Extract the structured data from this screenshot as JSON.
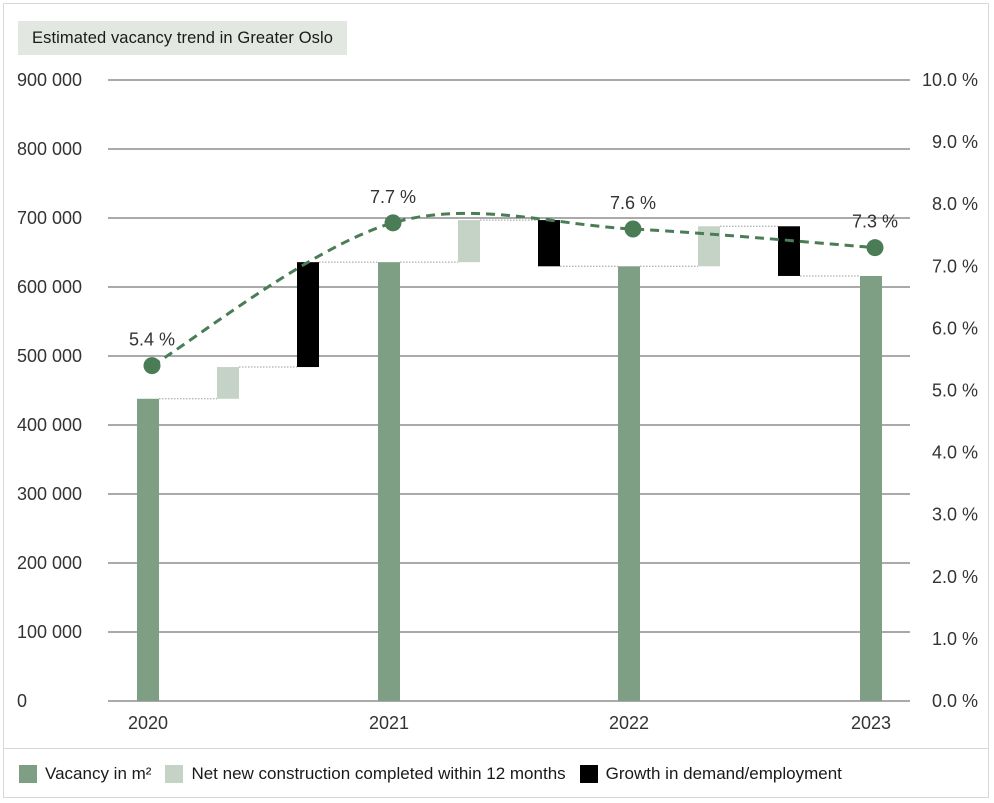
{
  "chart_data": {
    "type": "bar",
    "title": "Estimated vacancy trend in Greater Oslo",
    "categories": [
      "2020",
      "2021",
      "2022",
      "2023"
    ],
    "y_left": {
      "ylim": [
        0,
        900000
      ],
      "ticks": [
        0,
        100000,
        200000,
        300000,
        400000,
        500000,
        600000,
        700000,
        800000,
        900000
      ],
      "tick_labels": [
        "0",
        "100 000",
        "200 000",
        "300 000",
        "400 000",
        "500 000",
        "600 000",
        "700 000",
        "800 000",
        "900 000"
      ]
    },
    "y_right": {
      "ylim": [
        0,
        10
      ],
      "ticks": [
        0,
        1,
        2,
        3,
        4,
        5,
        6,
        7,
        8,
        9,
        10
      ],
      "tick_labels": [
        "0.0 %",
        "1.0 %",
        "2.0 %",
        "3.0 %",
        "4.0 %",
        "5.0 %",
        "6.0 %",
        "7.0 %",
        "8.0 %",
        "9.0 %",
        "10.0 %"
      ]
    },
    "vacancy": {
      "name": "Vacancy in m²",
      "color": "#7f9f84",
      "values": [
        438000,
        636000,
        630000,
        616000
      ]
    },
    "steps": [
      {
        "between": [
          "2020",
          "2021"
        ],
        "type": "construction",
        "start": 438000,
        "end": 484000
      },
      {
        "between": [
          "2020",
          "2021"
        ],
        "type": "growth",
        "start": 484000,
        "end": 636000
      },
      {
        "between": [
          "2021",
          "2022"
        ],
        "type": "construction",
        "start": 636000,
        "end": 697000
      },
      {
        "between": [
          "2021",
          "2022"
        ],
        "type": "growth",
        "start": 697000,
        "end": 630000
      },
      {
        "between": [
          "2022",
          "2023"
        ],
        "type": "construction",
        "start": 630000,
        "end": 688000
      },
      {
        "between": [
          "2022",
          "2023"
        ],
        "type": "growth",
        "start": 688000,
        "end": 616000
      }
    ],
    "construction_series": {
      "name": "Net new construction completed within 12 months",
      "color": "#c5d2c6"
    },
    "growth_series": {
      "name": "Growth in demand/employment",
      "color": "#000000"
    },
    "vacancy_rate": {
      "color": "#4a7d55",
      "values": [
        5.4,
        7.7,
        7.6,
        7.3
      ],
      "labels": [
        "5.4 %",
        "7.7 %",
        "7.6 %",
        "7.3 %"
      ]
    },
    "grid": true,
    "legend_position": "bottom"
  }
}
